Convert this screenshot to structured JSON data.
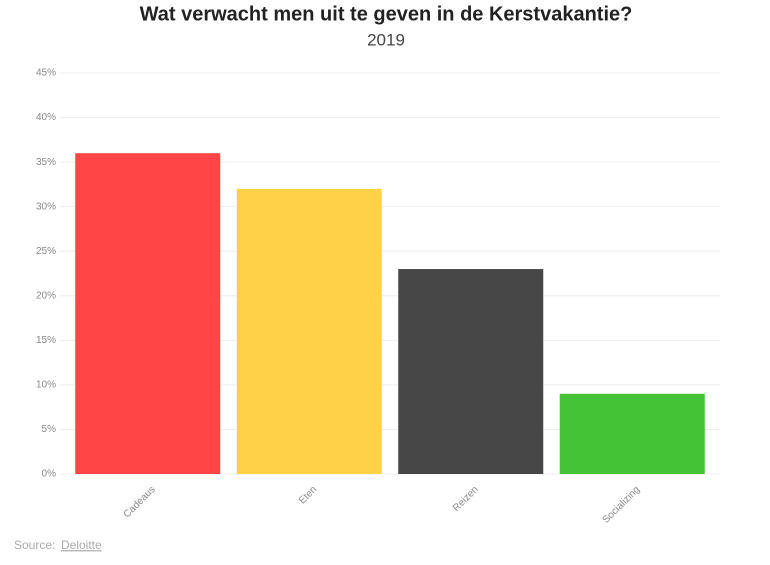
{
  "chart_data": {
    "type": "bar",
    "title": "Wat verwacht men uit te geven in de Kerstvakantie?",
    "subtitle": "2019",
    "categories": [
      "Cadeaus",
      "Eten",
      "Reizen",
      "Socializing"
    ],
    "values": [
      36,
      32,
      23,
      9
    ],
    "colors": [
      "#ff4545",
      "#ffd147",
      "#474747",
      "#43c335"
    ],
    "ylim": [
      0,
      45
    ],
    "yticks": [
      {
        "value": 0,
        "label": "0%"
      },
      {
        "value": 5,
        "label": "5%"
      },
      {
        "value": 10,
        "label": "10%"
      },
      {
        "value": 15,
        "label": "15%"
      },
      {
        "value": 20,
        "label": "20%"
      },
      {
        "value": 25,
        "label": "25%"
      },
      {
        "value": 30,
        "label": "30%"
      },
      {
        "value": 35,
        "label": "35%"
      },
      {
        "value": 40,
        "label": "40%"
      },
      {
        "value": 45,
        "label": "45%"
      }
    ],
    "grid": true,
    "source_label": "Source:",
    "source_name": "Deloitte"
  }
}
